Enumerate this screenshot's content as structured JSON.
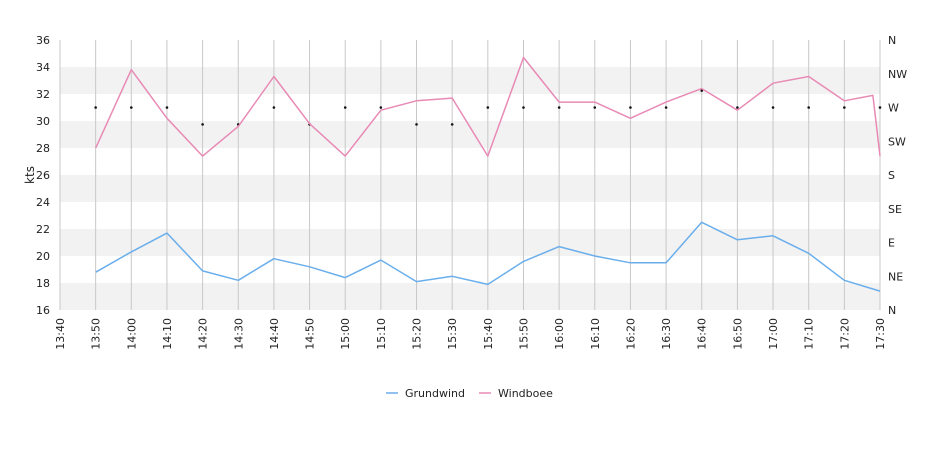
{
  "chart_data": {
    "type": "line",
    "title": "",
    "xlabel": "",
    "ylabel": "kts",
    "ylim": [
      16,
      36
    ],
    "yticks": [
      16,
      18,
      20,
      22,
      24,
      26,
      28,
      30,
      32,
      34,
      36
    ],
    "x_tick_labels": [
      "13:40",
      "13:50",
      "14:00",
      "14:10",
      "14:20",
      "14:30",
      "14:40",
      "14:50",
      "15:00",
      "15:10",
      "15:20",
      "15:30",
      "15:40",
      "15:50",
      "16:00",
      "16:10",
      "16:20",
      "16:30",
      "16:40",
      "16:50",
      "17:00",
      "17:10",
      "17:20",
      "17:30"
    ],
    "direction_axis": {
      "labels": [
        "N",
        "NW",
        "W",
        "SW",
        "S",
        "SE",
        "E",
        "NE",
        "N"
      ]
    },
    "grid": true,
    "legend_position": "bottom-center",
    "x": [
      "13:50",
      "14:00",
      "14:10",
      "14:20",
      "14:30",
      "14:40",
      "14:50",
      "15:00",
      "15:10",
      "15:20",
      "15:30",
      "15:40",
      "15:50",
      "16:00",
      "16:10",
      "16:20",
      "16:30",
      "16:40",
      "16:50",
      "17:00",
      "17:10",
      "17:20",
      "17:30"
    ],
    "series": [
      {
        "name": "Grundwind",
        "color": "#6aaeec",
        "values": [
          18.8,
          20.3,
          21.7,
          18.9,
          18.2,
          19.8,
          19.2,
          18.4,
          19.7,
          18.1,
          18.5,
          17.9,
          19.6,
          20.7,
          20.0,
          19.5,
          19.5,
          22.5,
          21.2,
          21.5,
          20.2,
          18.2,
          17.4
        ]
      },
      {
        "name": "Windboee",
        "color": "#e88ab5",
        "values": [
          28.0,
          33.8,
          30.2,
          27.4,
          29.6,
          33.3,
          29.8,
          27.4,
          30.8,
          31.5,
          31.7,
          27.4,
          34.7,
          31.4,
          31.4,
          30.2,
          31.4,
          32.4,
          30.8,
          32.8,
          33.3,
          31.5,
          31.9,
          27.4
        ],
        "x": [
          "13:50",
          "14:00",
          "14:10",
          "14:20",
          "14:30",
          "14:40",
          "14:50",
          "15:00",
          "15:10",
          "15:20",
          "15:30",
          "15:40",
          "15:50",
          "16:00",
          "16:10",
          "16:20",
          "16:30",
          "16:40",
          "16:50",
          "17:00",
          "17:10",
          "17:20",
          "17:28",
          "17:30"
        ]
      }
    ],
    "direction_markers": {
      "x": [
        "13:50",
        "14:00",
        "14:10",
        "14:20",
        "14:30",
        "14:40",
        "14:50",
        "15:00",
        "15:10",
        "15:20",
        "15:30",
        "15:40",
        "15:50",
        "16:00",
        "16:10",
        "16:20",
        "16:30",
        "16:40",
        "16:50",
        "17:00",
        "17:10",
        "17:20",
        "17:30"
      ],
      "values": [
        "W",
        "W",
        "W",
        "WSW",
        "WSW",
        "W",
        "WSW",
        "W",
        "W",
        "WSW",
        "WSW",
        "W",
        "W",
        "W",
        "W",
        "W",
        "W",
        "WNW",
        "W",
        "W",
        "W",
        "W",
        "W"
      ]
    }
  }
}
